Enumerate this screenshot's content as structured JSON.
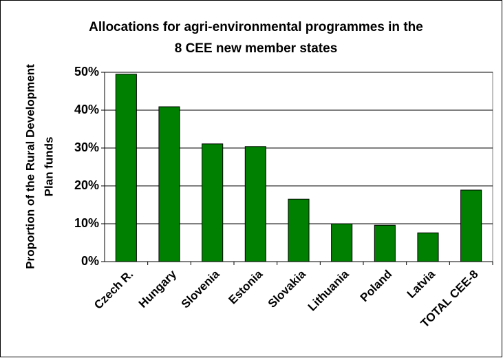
{
  "chart_data": {
    "type": "bar",
    "title": [
      "Allocations for agri-environmental programmes in the",
      "8 CEE new member states"
    ],
    "y_label": [
      "Proportion of the Rural Development",
      "Plan funds"
    ],
    "categories": [
      "Czech R.",
      "Hungary",
      "Slovenia",
      "Estonia",
      "Slovakia",
      "Lithuania",
      "Poland",
      "Latvia",
      "TOTAL CEE-8"
    ],
    "values": [
      49.5,
      40.9,
      31.1,
      30.4,
      16.5,
      10,
      9.6,
      7.6,
      18.9
    ],
    "color": "#008000",
    "ylim": [
      0,
      50
    ],
    "yticks": [
      {
        "value": 0,
        "label": "0%"
      },
      {
        "value": 10,
        "label": "10%"
      },
      {
        "value": 20,
        "label": "20%"
      },
      {
        "value": 30,
        "label": "30%"
      },
      {
        "value": 40,
        "label": "40%"
      },
      {
        "value": 50,
        "label": "50%"
      }
    ],
    "grid": true
  }
}
